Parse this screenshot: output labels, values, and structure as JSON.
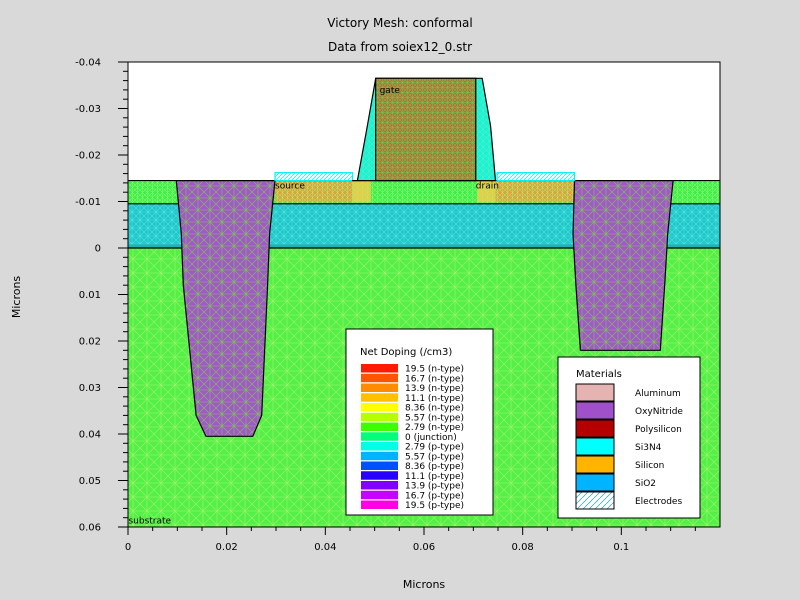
{
  "chart_data": {
    "type": "heatmap",
    "title": "Victory Mesh: conformal",
    "subtitle": "Data from soiex12_0.str",
    "xlabel": "Microns",
    "ylabel": "Microns",
    "xlim": [
      0,
      0.12
    ],
    "ylim": [
      -0.04,
      0.06
    ],
    "y_inverted": true,
    "x_ticks": [
      {
        "value": 0,
        "label": "0"
      },
      {
        "value": 0.02,
        "label": "0.02"
      },
      {
        "value": 0.04,
        "label": "0.04"
      },
      {
        "value": 0.06,
        "label": "0.06"
      },
      {
        "value": 0.08,
        "label": "0.08"
      },
      {
        "value": 0.1,
        "label": "0.1"
      }
    ],
    "y_ticks": [
      {
        "value": -0.04,
        "label": "-0.04"
      },
      {
        "value": -0.03,
        "label": "-0.03"
      },
      {
        "value": -0.02,
        "label": "-0.02"
      },
      {
        "value": -0.01,
        "label": "-0.01"
      },
      {
        "value": 0,
        "label": "0"
      },
      {
        "value": 0.01,
        "label": "0.01"
      },
      {
        "value": 0.02,
        "label": "0.02"
      },
      {
        "value": 0.03,
        "label": "0.03"
      },
      {
        "value": 0.04,
        "label": "0.04"
      },
      {
        "value": 0.05,
        "label": "0.05"
      },
      {
        "value": 0.06,
        "label": "0.06"
      }
    ],
    "annotations": [
      {
        "text": "gate",
        "x": 0.051,
        "y": -0.0333
      },
      {
        "text": "source",
        "x": 0.0298,
        "y": -0.0128
      },
      {
        "text": "drain",
        "x": 0.0705,
        "y": -0.0128
      },
      {
        "text": "substrate",
        "x": 0.0001,
        "y": 0.0593
      }
    ],
    "regions": [
      {
        "material": "Silicon",
        "role": "substrate",
        "x": [
          0,
          0.12
        ],
        "y": [
          0,
          0.06
        ]
      },
      {
        "material": "SiO2",
        "role": "buried oxide",
        "x": [
          0,
          0.12
        ],
        "y": [
          -0.0095,
          0
        ]
      },
      {
        "material": "Silicon",
        "role": "active layer",
        "x": [
          0,
          0.12
        ],
        "y": [
          -0.0145,
          -0.0095
        ]
      },
      {
        "material": "OxyNitride",
        "role": "left isolation trench",
        "outline": [
          [
            0.0098,
            -0.0145
          ],
          [
            0.0298,
            -0.0145
          ],
          [
            0.0287,
            -0.003
          ],
          [
            0.0283,
            0.008
          ],
          [
            0.0271,
            0.036
          ],
          [
            0.0253,
            0.0405
          ],
          [
            0.0158,
            0.0405
          ],
          [
            0.0138,
            0.036
          ],
          [
            0.0112,
            0.008
          ],
          [
            0.0108,
            -0.003
          ]
        ]
      },
      {
        "material": "OxyNitride",
        "role": "right isolation trench",
        "outline": [
          [
            0.0905,
            -0.0145
          ],
          [
            0.1105,
            -0.0145
          ],
          [
            0.1094,
            -0.003
          ],
          [
            0.1088,
            0.008
          ],
          [
            0.1079,
            0.022
          ],
          [
            0.0917,
            0.022
          ],
          [
            0.0908,
            0.008
          ],
          [
            0.0902,
            -0.003
          ]
        ]
      },
      {
        "material": "Si3N4",
        "role": "gate spacer",
        "outline": [
          [
            0.0455,
            -0.0145
          ],
          [
            0.0745,
            -0.0145
          ],
          [
            0.0735,
            -0.0262
          ],
          [
            0.0718,
            -0.0365
          ],
          [
            0.0502,
            -0.0365
          ],
          [
            0.0485,
            -0.0262
          ],
          [
            0.0465,
            -0.0145
          ]
        ]
      },
      {
        "material": "Polysilicon",
        "role": "gate",
        "x": [
          0.0502,
          0.0705
        ],
        "y": [
          -0.0365,
          -0.0145
        ]
      },
      {
        "material": "Electrodes",
        "role": "source contact",
        "x": [
          0.0298,
          0.0455
        ],
        "y": [
          -0.0162,
          -0.0145
        ]
      },
      {
        "material": "Electrodes",
        "role": "drain contact",
        "x": [
          0.0748,
          0.0905
        ],
        "y": [
          -0.0162,
          -0.0145
        ]
      }
    ],
    "doping_legend": {
      "title": "Net Doping (/cm3)",
      "entries": [
        {
          "label": "19.5 (n-type)",
          "color": "#ff1a00"
        },
        {
          "label": "16.7 (n-type)",
          "color": "#ff5500"
        },
        {
          "label": "13.9 (n-type)",
          "color": "#ff8c00"
        },
        {
          "label": "11.1 (n-type)",
          "color": "#ffc000"
        },
        {
          "label": "8.36 (n-type)",
          "color": "#ffff00"
        },
        {
          "label": "5.57 (n-type)",
          "color": "#b5ff00"
        },
        {
          "label": "2.79 (n-type)",
          "color": "#3cff00"
        },
        {
          "label": "0 (junction)",
          "color": "#00ff78"
        },
        {
          "label": "2.79 (p-type)",
          "color": "#00ffe6"
        },
        {
          "label": "5.57 (p-type)",
          "color": "#00b4ff"
        },
        {
          "label": "8.36 (p-type)",
          "color": "#0050ff"
        },
        {
          "label": "11.1 (p-type)",
          "color": "#2800ff"
        },
        {
          "label": "13.9 (p-type)",
          "color": "#8200ff"
        },
        {
          "label": "16.7 (p-type)",
          "color": "#c800ff"
        },
        {
          "label": "19.5 (p-type)",
          "color": "#ff00e6"
        }
      ]
    },
    "materials_legend": {
      "title": "Materials",
      "entries": [
        {
          "label": "Aluminum",
          "color": "#e6b3b3",
          "pattern": "solid"
        },
        {
          "label": "OxyNitride",
          "color": "#a050c8",
          "pattern": "solid"
        },
        {
          "label": "Polysilicon",
          "color": "#b40000",
          "pattern": "solid"
        },
        {
          "label": "Si3N4",
          "color": "#00ffff",
          "pattern": "solid"
        },
        {
          "label": "Silicon",
          "color": "#ffb400",
          "pattern": "solid"
        },
        {
          "label": "SiO2",
          "color": "#00b4ff",
          "pattern": "solid"
        },
        {
          "label": "Electrodes",
          "color": "#ffffff",
          "pattern": "hatch"
        }
      ]
    }
  },
  "colors": {
    "page_background": "#d9d9d9",
    "plot_background": "#ffffff",
    "substrate_field": "#55f047",
    "buried_oxide_field": "#29c1c8",
    "active_layer_field": "#3cf04a",
    "source_drain_doping": "#e2a23a",
    "mesh_line_substrate": "#9ff36a",
    "mesh_line_oxide": "#3aeede",
    "gate_poly_doping": "#b8722f",
    "gate_mesh": "#5ed25a",
    "trench_fill": "#a259c8",
    "trench_mesh": "#77c84e",
    "spacer_fill": "#19f2d6",
    "spacer_mesh": "#5ef0b8",
    "electrode_edge": "#00f2f2"
  }
}
